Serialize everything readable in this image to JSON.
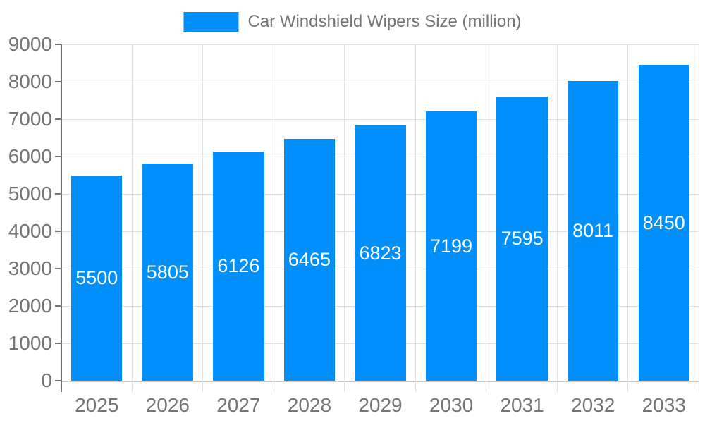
{
  "chart_data": {
    "type": "bar",
    "title": "Car Windshield Wipers Size (million)",
    "categories": [
      "2025",
      "2026",
      "2027",
      "2028",
      "2029",
      "2030",
      "2031",
      "2032",
      "2033"
    ],
    "values": [
      5500,
      5805,
      6126,
      6465,
      6823,
      7199,
      7595,
      8011,
      8450
    ],
    "series": [
      {
        "name": "Car Windshield Wipers Size (million)",
        "values": [
          5500,
          5805,
          6126,
          6465,
          6823,
          7199,
          7595,
          8011,
          8450
        ]
      }
    ],
    "xlabel": "",
    "ylabel": "",
    "ylim": [
      0,
      9000
    ],
    "y_ticks": [
      0,
      1000,
      2000,
      3000,
      4000,
      5000,
      6000,
      7000,
      8000,
      9000
    ],
    "grid": true,
    "legend_position": "top",
    "bar_labels_visible": true
  },
  "colors": {
    "bar": "#008FFB",
    "bar_label": "#FFFFFF",
    "axis_label": "#757575",
    "legend_label": "#757575",
    "gridline": "#E0E0E0",
    "axis_line": "#737373",
    "x_axis_border": "#C9C9C9",
    "background": "#FFFFFF"
  }
}
